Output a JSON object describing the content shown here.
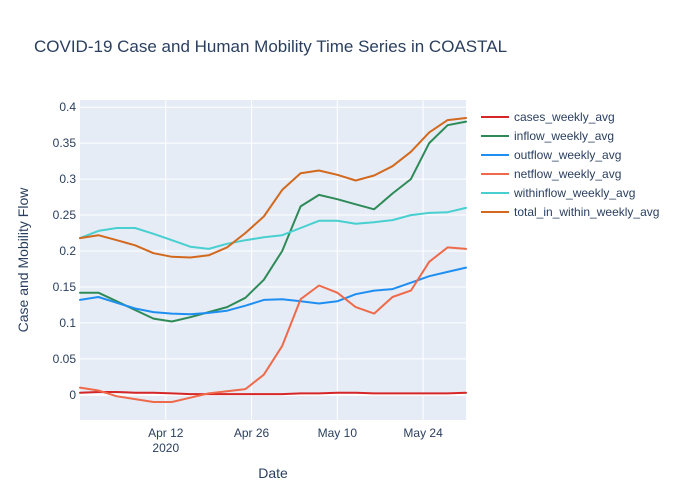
{
  "chart_data": {
    "type": "line",
    "title": "COVID-19 Case and Human Mobility Time Series in COASTAL",
    "xlabel": "Date",
    "ylabel": "Case and Mobility Flow",
    "x_tick_labels": [
      "Apr 12\n2020",
      "Apr 26",
      "May 10",
      "May 24"
    ],
    "x_tick_dates": [
      "2020-04-12",
      "2020-04-26",
      "2020-05-10",
      "2020-05-24"
    ],
    "xlim": [
      "2020-03-29",
      "2020-05-31"
    ],
    "ylim": [
      -0.035,
      0.41
    ],
    "y_ticks": [
      0,
      0.05,
      0.1,
      0.15,
      0.2,
      0.25,
      0.3,
      0.35,
      0.4
    ],
    "y_tick_labels": [
      "0",
      "0.05",
      "0.1",
      "0.15",
      "0.2",
      "0.25",
      "0.3",
      "0.35",
      "0.4"
    ],
    "grid": true,
    "legend_position": "right",
    "x": [
      "2020-03-29",
      "2020-04-01",
      "2020-04-04",
      "2020-04-07",
      "2020-04-10",
      "2020-04-13",
      "2020-04-16",
      "2020-04-19",
      "2020-04-22",
      "2020-04-25",
      "2020-04-28",
      "2020-05-01",
      "2020-05-04",
      "2020-05-07",
      "2020-05-10",
      "2020-05-13",
      "2020-05-16",
      "2020-05-19",
      "2020-05-22",
      "2020-05-25",
      "2020-05-28",
      "2020-05-31"
    ],
    "series": [
      {
        "name": "cases_weekly_avg",
        "color": "#d62728",
        "values": [
          0.003,
          0.004,
          0.004,
          0.003,
          0.003,
          0.002,
          0.001,
          0.001,
          0.001,
          0.001,
          0.001,
          0.001,
          0.002,
          0.002,
          0.003,
          0.003,
          0.002,
          0.002,
          0.002,
          0.002,
          0.002,
          0.003
        ]
      },
      {
        "name": "inflow_weekly_avg",
        "color": "#2e8b57",
        "values": [
          0.142,
          0.142,
          0.13,
          0.118,
          0.106,
          0.102,
          0.108,
          0.115,
          0.122,
          0.135,
          0.16,
          0.2,
          0.262,
          0.278,
          0.272,
          0.265,
          0.258,
          0.28,
          0.3,
          0.35,
          0.375,
          0.38
        ]
      },
      {
        "name": "outflow_weekly_avg",
        "color": "#1f8ef1",
        "values": [
          0.132,
          0.136,
          0.128,
          0.12,
          0.115,
          0.113,
          0.112,
          0.114,
          0.117,
          0.124,
          0.132,
          0.133,
          0.13,
          0.127,
          0.13,
          0.14,
          0.145,
          0.147,
          0.156,
          0.165,
          0.171,
          0.177
        ]
      },
      {
        "name": "netflow_weekly_avg",
        "color": "#ef6a4a",
        "values": [
          0.01,
          0.006,
          -0.002,
          -0.006,
          -0.01,
          -0.01,
          -0.004,
          0.002,
          0.005,
          0.008,
          0.028,
          0.068,
          0.133,
          0.152,
          0.142,
          0.122,
          0.113,
          0.136,
          0.145,
          0.185,
          0.205,
          0.203
        ]
      },
      {
        "name": "withinflow_weekly_avg",
        "color": "#48cfcf",
        "values": [
          0.218,
          0.228,
          0.232,
          0.232,
          0.224,
          0.215,
          0.206,
          0.203,
          0.21,
          0.215,
          0.219,
          0.222,
          0.232,
          0.242,
          0.242,
          0.238,
          0.24,
          0.243,
          0.25,
          0.253,
          0.254,
          0.26
        ]
      },
      {
        "name": "total_in_within_weekly_avg",
        "color": "#d2691e",
        "values": [
          0.218,
          0.222,
          0.215,
          0.208,
          0.197,
          0.192,
          0.191,
          0.194,
          0.205,
          0.225,
          0.248,
          0.285,
          0.308,
          0.312,
          0.306,
          0.298,
          0.305,
          0.318,
          0.338,
          0.365,
          0.382,
          0.385
        ]
      }
    ]
  }
}
